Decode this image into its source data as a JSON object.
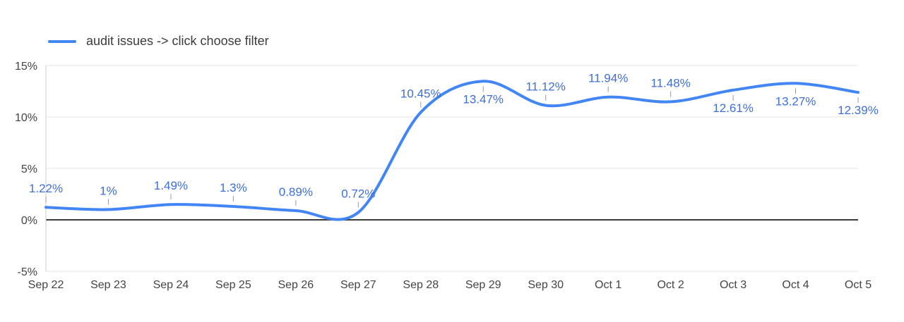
{
  "legend": {
    "label": "audit issues -> click choose filter"
  },
  "colors": {
    "series": "#4285f4",
    "annotation": "#3e6fd8",
    "grid": "#e6e6e6",
    "baseline": "#3c3c3c",
    "axis_line": "#cccccc",
    "stem": "#999999",
    "axis_text": "#444444",
    "background": "#ffffff"
  },
  "chart_data": {
    "type": "line",
    "title": "",
    "xlabel": "",
    "ylabel": "",
    "legend_position": "top-left",
    "grid": true,
    "curve": "smooth",
    "ylim": [
      -5,
      15
    ],
    "y_ticks": [
      "-5%",
      "0%",
      "5%",
      "10%",
      "15%"
    ],
    "y_tick_values": [
      -5,
      0,
      5,
      10,
      15
    ],
    "categories": [
      "Sep 22",
      "Sep 23",
      "Sep 24",
      "Sep 25",
      "Sep 26",
      "Sep 27",
      "Sep 28",
      "Sep 29",
      "Sep 30",
      "Oct 1",
      "Oct 2",
      "Oct 3",
      "Oct 4",
      "Oct 5"
    ],
    "series": [
      {
        "name": "audit issues -> click choose filter",
        "values": [
          1.22,
          1,
          1.49,
          1.3,
          0.89,
          0.72,
          10.45,
          13.47,
          11.12,
          11.94,
          11.48,
          12.61,
          13.27,
          12.39
        ]
      }
    ],
    "data_labels": [
      "1.22%",
      "1%",
      "1.49%",
      "1.3%",
      "0.89%",
      "0.72%",
      "10.45%",
      "13.47%",
      "11.12%",
      "11.94%",
      "11.48%",
      "12.61%",
      "13.27%",
      "12.39%"
    ],
    "label_positions": [
      "above",
      "above",
      "above",
      "above",
      "above",
      "above",
      "above",
      "below",
      "above",
      "above",
      "above",
      "below",
      "below",
      "below"
    ]
  }
}
